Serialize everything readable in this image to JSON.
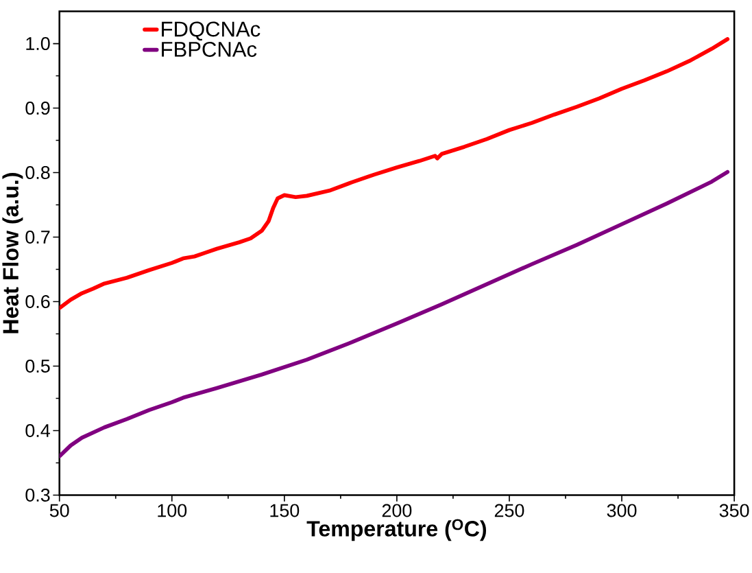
{
  "chart_data": {
    "type": "line",
    "xlabel": "Temperature ($^{O}$C)",
    "ylabel": "Heat Flow (a.u.)",
    "xlim": [
      50,
      350
    ],
    "ylim": [
      0.3,
      1.05
    ],
    "xticks": [
      50,
      100,
      150,
      200,
      250,
      300,
      350
    ],
    "yticks": [
      0.3,
      0.4,
      0.5,
      0.6,
      0.7,
      0.8,
      0.9,
      {
        "value": 1.0,
        "label": "1.0"
      }
    ],
    "legend": "top left",
    "grid": false,
    "marker": "none",
    "line_style": "solid",
    "x": [
      50,
      55,
      60,
      65,
      70,
      80,
      90,
      100,
      105,
      110,
      115,
      120,
      130,
      135,
      140,
      143,
      145,
      147,
      150,
      155,
      160,
      170,
      180,
      190,
      200,
      210,
      217,
      218,
      220,
      230,
      240,
      250,
      260,
      270,
      280,
      290,
      300,
      310,
      320,
      330,
      340,
      347
    ],
    "series": [
      {
        "name": "FDQCNAc",
        "color": "#ff0000",
        "values": [
          0.59,
          0.603,
          0.613,
          0.62,
          0.628,
          0.637,
          0.649,
          0.66,
          0.667,
          0.67,
          0.676,
          0.682,
          0.692,
          0.698,
          0.71,
          0.725,
          0.745,
          0.76,
          0.765,
          0.762,
          0.764,
          0.772,
          0.785,
          0.797,
          0.808,
          0.818,
          0.826,
          0.822,
          0.829,
          0.84,
          0.852,
          0.866,
          0.877,
          0.89,
          0.902,
          0.915,
          0.93,
          0.943,
          0.957,
          0.973,
          0.992,
          1.007
        ]
      },
      {
        "name": "FBPCNAc",
        "color": "#800080",
        "x": [
          50,
          55,
          60,
          70,
          80,
          90,
          100,
          105,
          120,
          140,
          160,
          180,
          200,
          220,
          240,
          260,
          280,
          300,
          320,
          340,
          347
        ],
        "values": [
          0.36,
          0.377,
          0.389,
          0.405,
          0.418,
          0.432,
          0.444,
          0.451,
          0.466,
          0.487,
          0.51,
          0.537,
          0.566,
          0.596,
          0.627,
          0.658,
          0.688,
          0.72,
          0.752,
          0.786,
          0.801
        ]
      }
    ]
  }
}
